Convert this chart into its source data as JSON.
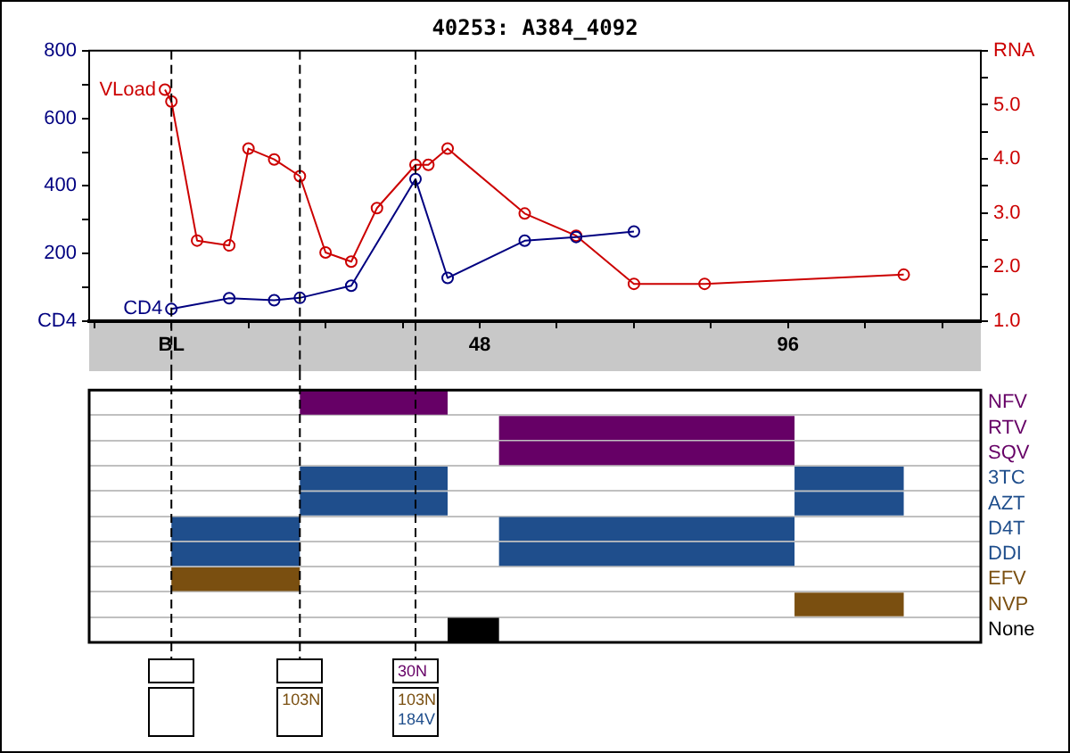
{
  "chart_data": [
    {
      "type": "line",
      "title": "40253: A384_4092",
      "marker": "circle",
      "xlim": [
        -12.8,
        126
      ],
      "xticks": [
        {
          "value": -12,
          "label": null
        },
        {
          "value": 0,
          "label": "BL"
        },
        {
          "value": 12,
          "label": null
        },
        {
          "value": 24,
          "label": null
        },
        {
          "value": 36,
          "label": null
        },
        48,
        {
          "value": 60,
          "label": null
        },
        {
          "value": 72,
          "label": null
        },
        {
          "value": 84,
          "label": null
        },
        96,
        {
          "value": 108,
          "label": null
        },
        {
          "value": 120,
          "label": null
        }
      ],
      "ylim": [
        0,
        800
      ],
      "yticks": [
        {
          "value": 0,
          "label": "CD4"
        },
        {
          "value": 100,
          "label": null
        },
        200,
        {
          "value": 300,
          "label": null
        },
        400,
        {
          "value": 500,
          "label": null
        },
        600,
        {
          "value": 700,
          "label": null
        },
        800
      ],
      "y2lim": [
        1.0,
        6.0
      ],
      "y2ticks": [
        {
          "value": 1,
          "label": "1.0"
        },
        {
          "value": 1.5,
          "label": null
        },
        {
          "value": 2,
          "label": "2.0"
        },
        {
          "value": 2.5,
          "label": null
        },
        {
          "value": 3,
          "label": "3.0"
        },
        {
          "value": 3.5,
          "label": null
        },
        {
          "value": 4,
          "label": "4.0"
        },
        {
          "value": 4.5,
          "label": null
        },
        {
          "value": 5,
          "label": "5.0"
        },
        {
          "value": 5.5,
          "label": null
        },
        {
          "value": 6,
          "label": "RNA"
        }
      ],
      "series": [
        {
          "name": "CD4",
          "color": "#000080",
          "x": [
            0,
            9,
            16,
            20,
            28,
            38,
            43,
            55,
            63,
            72
          ],
          "values": [
            36,
            68,
            62,
            69,
            105,
            420,
            128,
            238,
            249,
            265
          ]
        },
        {
          "name": "VLoad",
          "color": "#cc0000",
          "axis": "y2",
          "x": [
            -1,
            0,
            4,
            9,
            12,
            16,
            20,
            24,
            28,
            32,
            38,
            40,
            43,
            55,
            63,
            72,
            83,
            114
          ],
          "values": [
            5.28,
            5.06,
            2.49,
            2.4,
            4.19,
            3.99,
            3.68,
            2.27,
            2.1,
            3.09,
            3.89,
            3.89,
            4.19,
            2.99,
            2.58,
            1.69,
            1.69,
            1.86
          ]
        }
      ],
      "ref_lines": [
        {
          "axis": "x",
          "value": 0
        },
        {
          "axis": "x",
          "value": 20,
          "label": "103N"
        },
        {
          "axis": "x",
          "value": 38,
          "label": "103N 184V"
        }
      ]
    },
    {
      "type": "bar",
      "orientation": "horizontal",
      "tick_labels": "y",
      "grid": "y",
      "xlim": [
        -12.8,
        126
      ],
      "categories": [
        "NFV",
        "RTV",
        "SQV",
        "3TC",
        "AZT",
        "D4T",
        "DDI",
        "EFV",
        "NVP",
        "None"
      ],
      "series": [
        {
          "colors": [
            "#660066",
            "#660066",
            "#660066",
            "#1f4e8c",
            "#1f4e8c",
            "#1f4e8c",
            "#1f4e8c",
            "#7a4f10",
            "#7a4f10",
            "#000000"
          ],
          "base": [
            20,
            51,
            51,
            20,
            20,
            0,
            0,
            0,
            97,
            43
          ],
          "values": [
            23,
            46,
            46,
            23,
            23,
            20,
            20,
            20,
            17,
            8
          ]
        },
        {
          "colors": [
            null,
            null,
            null,
            "#1f4e8c",
            "#1f4e8c",
            "#1f4e8c",
            "#1f4e8c",
            null,
            null,
            null
          ],
          "base": [
            null,
            null,
            null,
            97,
            97,
            51,
            51,
            null,
            null,
            null
          ],
          "values": [
            null,
            null,
            null,
            17,
            17,
            46,
            46,
            null,
            null,
            null
          ]
        }
      ],
      "ref_lines": [
        {
          "axis": "x",
          "value": 0
        },
        {
          "axis": "x",
          "value": 20
        },
        {
          "axis": "x",
          "value": 38,
          "label": "30N"
        }
      ]
    }
  ]
}
